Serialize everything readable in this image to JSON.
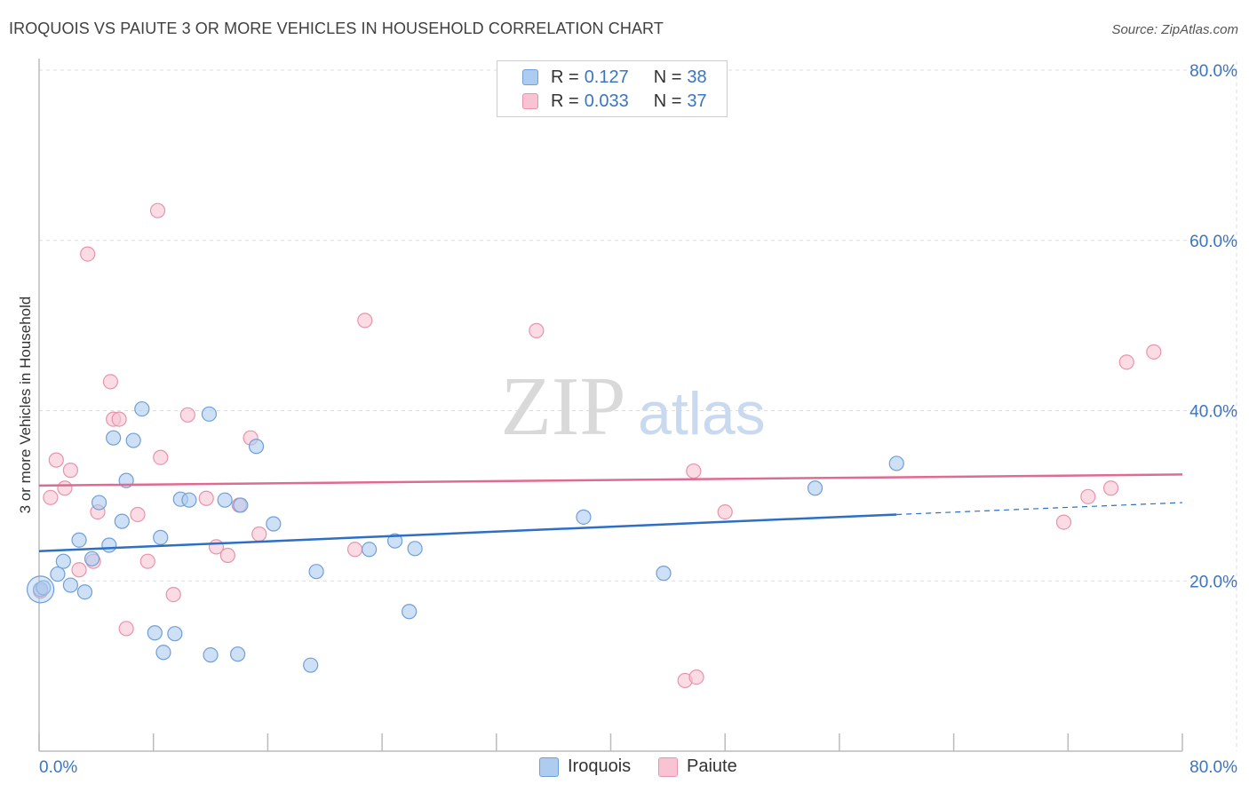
{
  "title": "IROQUOIS VS PAIUTE 3 OR MORE VEHICLES IN HOUSEHOLD CORRELATION CHART",
  "source": "Source: ZipAtlas.com",
  "watermark": {
    "zip": "ZIP",
    "atlas": "atlas"
  },
  "colors": {
    "iroquois_fill": "#aecbf0",
    "iroquois_stroke": "#6f9fd8",
    "iroquois_line": "#2d6fc7",
    "paiute_fill": "#f8c4d3",
    "paiute_stroke": "#e893ab",
    "paiute_line": "#e06b90",
    "tick_label": "#3a74c4",
    "grid": "#dddddd"
  },
  "legend": {
    "rows": [
      {
        "r_label": "R =",
        "r_value": "0.127",
        "n_label": "N =",
        "n_value": "38"
      },
      {
        "r_label": "R =",
        "r_value": "0.033",
        "n_label": "N =",
        "n_value": "37"
      }
    ]
  },
  "bottom_legend": {
    "iroquois": "Iroquois",
    "paiute": "Paiute"
  },
  "chart_data": {
    "type": "scatter",
    "xlabel": "",
    "ylabel": "3 or more Vehicles in Household",
    "xlim": [
      0,
      80
    ],
    "ylim": [
      0,
      80
    ],
    "x_tick_labels": [
      {
        "value": 0,
        "label": "0.0%"
      },
      {
        "value": 80,
        "label": "80.0%"
      }
    ],
    "y_tick_labels": [
      {
        "value": 20,
        "label": "20.0%"
      },
      {
        "value": 40,
        "label": "40.0%"
      },
      {
        "value": 60,
        "label": "60.0%"
      },
      {
        "value": 80,
        "label": "80.0%"
      }
    ],
    "grid": true,
    "legend_position": "top-center",
    "series": [
      {
        "name": "Iroquois",
        "r": 0.127,
        "n": 38,
        "trend": {
          "x0": 0,
          "y0": 23.5,
          "x1": 60,
          "y1": 27.8,
          "dashed_to_x": 80,
          "dashed_to_y": 29.2
        },
        "points": [
          [
            0.1,
            19.0
          ],
          [
            0.3,
            19.2
          ],
          [
            1.3,
            20.8
          ],
          [
            1.7,
            22.3
          ],
          [
            2.2,
            19.5
          ],
          [
            2.8,
            24.8
          ],
          [
            3.2,
            18.7
          ],
          [
            3.7,
            22.6
          ],
          [
            4.2,
            29.2
          ],
          [
            4.9,
            24.2
          ],
          [
            5.2,
            36.8
          ],
          [
            5.8,
            27.0
          ],
          [
            6.1,
            31.8
          ],
          [
            6.6,
            36.5
          ],
          [
            7.2,
            40.2
          ],
          [
            8.1,
            13.9
          ],
          [
            8.5,
            25.1
          ],
          [
            8.7,
            11.6
          ],
          [
            9.5,
            13.8
          ],
          [
            9.9,
            29.6
          ],
          [
            10.5,
            29.5
          ],
          [
            11.9,
            39.6
          ],
          [
            12.0,
            11.3
          ],
          [
            13.0,
            29.5
          ],
          [
            13.9,
            11.4
          ],
          [
            14.1,
            28.9
          ],
          [
            15.2,
            35.8
          ],
          [
            16.4,
            26.7
          ],
          [
            19.0,
            10.1
          ],
          [
            19.4,
            21.1
          ],
          [
            23.1,
            23.7
          ],
          [
            24.9,
            24.7
          ],
          [
            25.9,
            16.4
          ],
          [
            26.3,
            23.8
          ],
          [
            38.1,
            27.5
          ],
          [
            43.7,
            20.9
          ],
          [
            54.3,
            30.9
          ],
          [
            60.0,
            33.8
          ]
        ]
      },
      {
        "name": "Paiute",
        "r": 0.033,
        "n": 37,
        "trend": {
          "x0": 0,
          "y0": 31.2,
          "x1": 80,
          "y1": 32.5
        },
        "points": [
          [
            0.1,
            18.8
          ],
          [
            0.8,
            29.8
          ],
          [
            1.2,
            34.2
          ],
          [
            1.8,
            30.9
          ],
          [
            2.2,
            33.0
          ],
          [
            2.8,
            21.3
          ],
          [
            3.4,
            58.4
          ],
          [
            3.8,
            22.3
          ],
          [
            4.1,
            28.1
          ],
          [
            5.0,
            43.4
          ],
          [
            5.2,
            39.0
          ],
          [
            5.6,
            39.0
          ],
          [
            6.1,
            14.4
          ],
          [
            6.9,
            27.8
          ],
          [
            7.6,
            22.3
          ],
          [
            8.3,
            63.5
          ],
          [
            8.5,
            34.5
          ],
          [
            9.4,
            18.4
          ],
          [
            10.4,
            39.5
          ],
          [
            11.7,
            29.7
          ],
          [
            12.4,
            24.0
          ],
          [
            13.2,
            23.0
          ],
          [
            14.0,
            28.9
          ],
          [
            14.8,
            36.8
          ],
          [
            15.4,
            25.5
          ],
          [
            22.1,
            23.7
          ],
          [
            22.8,
            50.6
          ],
          [
            34.8,
            49.4
          ],
          [
            45.2,
            8.3
          ],
          [
            46.0,
            8.7
          ],
          [
            45.8,
            32.9
          ],
          [
            48.0,
            28.1
          ],
          [
            71.7,
            26.9
          ],
          [
            73.4,
            29.9
          ],
          [
            75.0,
            30.9
          ],
          [
            76.1,
            45.7
          ],
          [
            78.0,
            46.9
          ]
        ]
      }
    ]
  }
}
